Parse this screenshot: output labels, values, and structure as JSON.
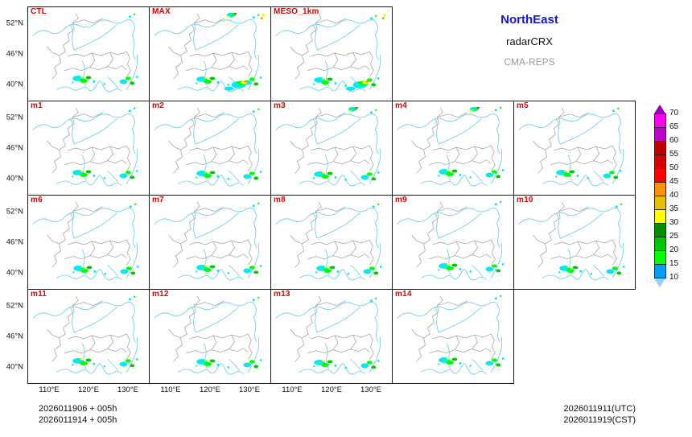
{
  "legend": {
    "title": "NorthEast",
    "subtitle": "radarCRX",
    "model": "CMA-REPS"
  },
  "panels": [
    {
      "label": "CTL"
    },
    {
      "label": "MAX"
    },
    {
      "label": "MESO_1km"
    },
    {
      "label": "m1"
    },
    {
      "label": "m2"
    },
    {
      "label": "m3"
    },
    {
      "label": "m4"
    },
    {
      "label": "m5"
    },
    {
      "label": "m6"
    },
    {
      "label": "m7"
    },
    {
      "label": "m8"
    },
    {
      "label": "m9"
    },
    {
      "label": "m10"
    },
    {
      "label": "m11"
    },
    {
      "label": "m12"
    },
    {
      "label": "m13"
    },
    {
      "label": "m14"
    }
  ],
  "axes": {
    "y_ticks": [
      "52°N",
      "46°N",
      "40°N"
    ],
    "x_ticks": [
      "110°E",
      "120°E",
      "130°E"
    ]
  },
  "colorbar": {
    "tick_labels": [
      "70",
      "65",
      "60",
      "55",
      "50",
      "45",
      "40",
      "35",
      "30",
      "25",
      "20",
      "15",
      "10"
    ],
    "over_color": "#9600B4",
    "under_color": "#96D2FA",
    "segment_colors_top_to_bottom": [
      "#FF00F0",
      "#C000C8",
      "#C00000",
      "#D60000",
      "#FF0000",
      "#FF9000",
      "#E7C000",
      "#FFFF00",
      "#019000",
      "#00C800",
      "#01FF00",
      "#00ECEC"
    ],
    "bottom_segment_color": "#01A0F6"
  },
  "footer": {
    "left_line1": "2026011906 + 005h",
    "left_line2": "2026011914 + 005h",
    "right_line1": "2026011911(UTC)",
    "right_line2": "2026011919(CST)"
  },
  "colors": {
    "panel_label": "#E00000",
    "legend_title": "#1414DC",
    "legend_model": "#9A9A9A",
    "boundary": "#9A9A9A",
    "water": "#63CBE8"
  },
  "chart_data": {
    "type": "heatmap",
    "subtype": "ensemble-multipanel-radar-reflectivity-map",
    "region_label": "NorthEast",
    "product_label": "radarCRX",
    "model_label": "CMA-REPS",
    "panel_labels": [
      "CTL",
      "MAX",
      "MESO_1km",
      "m1",
      "m2",
      "m3",
      "m4",
      "m5",
      "m6",
      "m7",
      "m8",
      "m9",
      "m10",
      "m11",
      "m12",
      "m13",
      "m14"
    ],
    "grid_rows": [
      3,
      5,
      5,
      4
    ],
    "x_tick_labels": [
      "110°E",
      "120°E",
      "130°E"
    ],
    "y_tick_labels": [
      "52°N",
      "46°N",
      "40°N"
    ],
    "colorbar_ticks": [
      70,
      65,
      60,
      55,
      50,
      45,
      40,
      35,
      30,
      25,
      20,
      15,
      10
    ],
    "colorbar_colors_top_to_bottom": [
      "#9600B4",
      "#FF00F0",
      "#C000C8",
      "#C00000",
      "#D60000",
      "#FF0000",
      "#FF9000",
      "#E7C000",
      "#FFFF00",
      "#019000",
      "#00C800",
      "#01FF00",
      "#00ECEC",
      "#01A0F6",
      "#96D2FA"
    ],
    "annotations": [
      "2026011906 + 005h",
      "2026011914 + 005h",
      "2026011911(UTC)",
      "2026011919(CST)"
    ],
    "legend_position": "top-right",
    "grid": false
  }
}
